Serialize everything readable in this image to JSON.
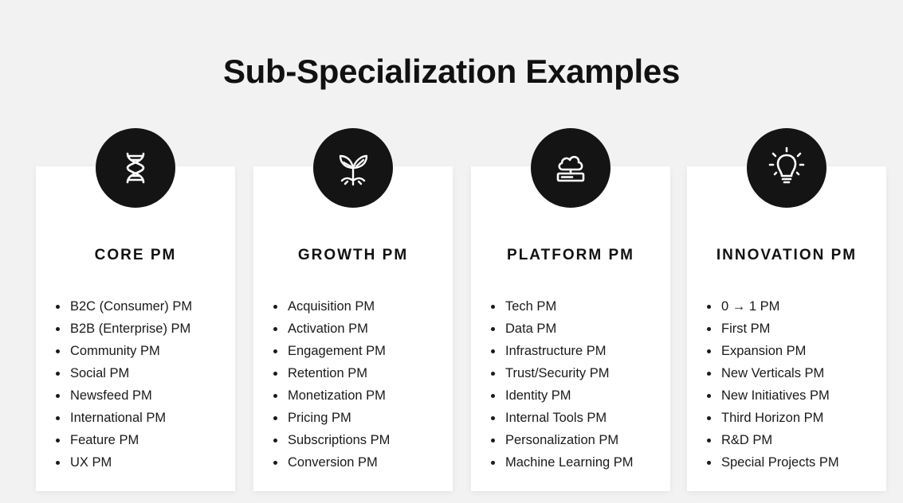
{
  "title": "Sub-Specialization Examples",
  "cards": [
    {
      "icon": "dna-icon",
      "title": "CORE PM",
      "items": [
        "B2C (Consumer) PM",
        "B2B (Enterprise) PM",
        "Community PM",
        "Social PM",
        "Newsfeed PM",
        "International PM",
        "Feature PM",
        "UX PM"
      ]
    },
    {
      "icon": "sprout-icon",
      "title": "GROWTH PM",
      "items": [
        "Acquisition PM",
        "Activation PM",
        "Engagement PM",
        "Retention PM",
        "Monetization PM",
        "Pricing PM",
        "Subscriptions PM",
        "Conversion PM"
      ]
    },
    {
      "icon": "cloud-server-icon",
      "title": "PLATFORM PM",
      "items": [
        "Tech PM",
        "Data PM",
        "Infrastructure PM",
        "Trust/Security PM",
        "Identity PM",
        "Internal Tools PM",
        "Personalization PM",
        "Machine Learning PM"
      ]
    },
    {
      "icon": "lightbulb-icon",
      "title": "INNOVATION PM",
      "items": [
        "0 → 1 PM",
        "First PM",
        "Expansion PM",
        "New Verticals PM",
        "New Initiatives PM",
        "Third Horizon PM",
        "R&D PM",
        "Special Projects PM"
      ]
    }
  ]
}
